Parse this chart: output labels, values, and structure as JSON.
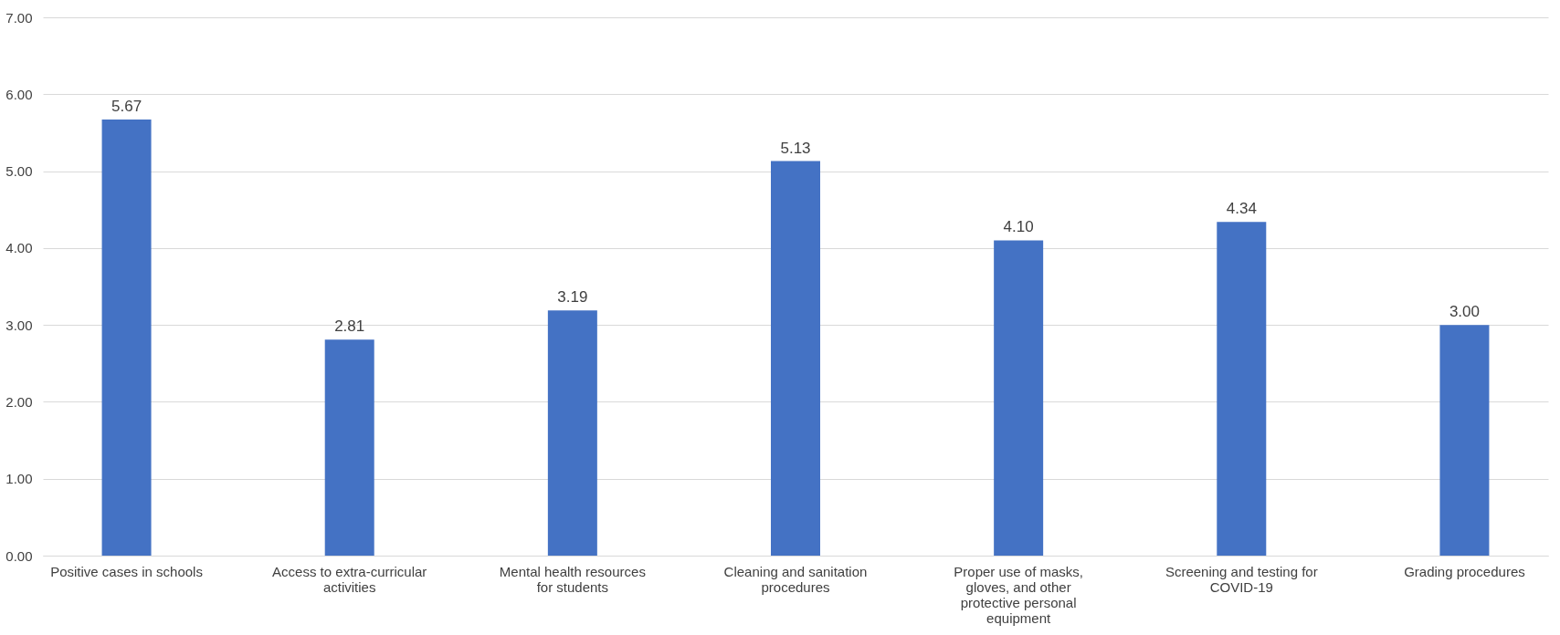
{
  "chart_data": {
    "type": "bar",
    "categories": [
      "Positive cases in schools",
      "Access to extra-curricular activities",
      "Mental health resources for students",
      "Cleaning and sanitation procedures",
      "Proper use of masks, gloves, and other protective personal equipment",
      "Screening and testing for COVID-19",
      "Grading procedures"
    ],
    "values": [
      5.67,
      2.81,
      3.19,
      5.13,
      4.1,
      4.34,
      3.0
    ],
    "value_labels": [
      "5.67",
      "2.81",
      "3.19",
      "5.13",
      "4.10",
      "4.34",
      "3.00"
    ],
    "color": "#4472c4",
    "ylim": [
      0,
      7
    ],
    "yticks": [
      {
        "value": 0,
        "label": "0.00"
      },
      {
        "value": 1,
        "label": "1.00"
      },
      {
        "value": 2,
        "label": "2.00"
      },
      {
        "value": 3,
        "label": "3.00"
      },
      {
        "value": 4,
        "label": "4.00"
      },
      {
        "value": 5,
        "label": "5.00"
      },
      {
        "value": 6,
        "label": "6.00"
      },
      {
        "value": 7,
        "label": "7.00"
      }
    ],
    "grid": "y"
  }
}
